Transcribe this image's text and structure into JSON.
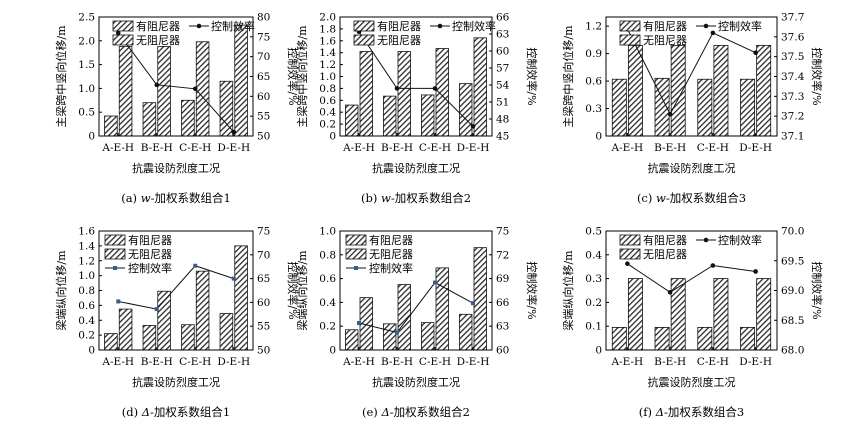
{
  "charts": [
    {
      "id": "a",
      "type": "bar+line",
      "categories": [
        "A-E-H",
        "B-E-H",
        "C-E-H",
        "D-E-H"
      ],
      "series": [
        {
          "name": "有阻尼器",
          "axis": "left",
          "values": [
            0.42,
            0.7,
            0.75,
            1.15
          ]
        },
        {
          "name": "无阻尼器",
          "axis": "left",
          "values": [
            1.88,
            1.88,
            1.98,
            2.33
          ]
        },
        {
          "name": "控制效率",
          "axis": "right",
          "values": [
            76.0,
            62.9,
            61.9,
            51.0
          ]
        }
      ],
      "ylabel": "主梁跨中竖向位移/m",
      "y2label": "控制效率/%",
      "xlabel": "抗震设防烈度工况",
      "ylim": [
        0,
        2.5
      ],
      "yticks": [
        "0",
        "0.5",
        "1.0",
        "1.5",
        "2.0",
        "2.5"
      ],
      "y2lim": [
        50,
        80
      ],
      "y2ticks": [
        "50",
        "55",
        "60",
        "65",
        "70",
        "75",
        "80"
      ],
      "legend": "top",
      "caption": {
        "prefix": "(a) ",
        "italic": "w",
        "suffix": "-加权系数组合1"
      }
    },
    {
      "id": "b",
      "type": "bar+line",
      "categories": [
        "A-E-H",
        "B-E-H",
        "C-E-H",
        "D-E-H"
      ],
      "series": [
        {
          "name": "有阻尼器",
          "axis": "left",
          "values": [
            0.52,
            0.67,
            0.69,
            0.88
          ]
        },
        {
          "name": "无阻尼器",
          "axis": "left",
          "values": [
            1.42,
            1.42,
            1.47,
            1.65
          ]
        },
        {
          "name": "控制效率",
          "axis": "right",
          "values": [
            63.4,
            53.4,
            53.4,
            46.7
          ]
        }
      ],
      "ylabel": "主梁跨中竖向位移/m",
      "y2label": "控制效率/%",
      "xlabel": "抗震设防烈度工况",
      "ylim": [
        0,
        2.0
      ],
      "yticks": [
        "0",
        "0.2",
        "0.4",
        "0.6",
        "0.8",
        "1.0",
        "1.2",
        "1.4",
        "1.6",
        "1.8",
        "2.0"
      ],
      "y2lim": [
        45,
        66
      ],
      "y2ticks": [
        "45",
        "48",
        "51",
        "54",
        "57",
        "60",
        "63",
        "66"
      ],
      "legend": "top",
      "caption": {
        "prefix": "(b) ",
        "italic": "w",
        "suffix": "-加权系数组合2"
      }
    },
    {
      "id": "c",
      "type": "bar+line",
      "categories": [
        "A-E-H",
        "B-E-H",
        "C-E-H",
        "D-E-H"
      ],
      "series": [
        {
          "name": "有阻尼器",
          "axis": "left",
          "values": [
            0.62,
            0.63,
            0.62,
            0.62
          ]
        },
        {
          "name": "无阻尼器",
          "axis": "left",
          "values": [
            0.99,
            0.99,
            0.99,
            0.99
          ]
        },
        {
          "name": "控制效率",
          "axis": "right",
          "values": [
            37.64,
            37.21,
            37.62,
            37.52
          ]
        }
      ],
      "ylabel": "主梁跨中竖向位移/m",
      "y2label": "控制效率/%",
      "xlabel": "抗震设防烈度工况",
      "ylim": [
        0,
        1.3
      ],
      "yticks": [
        "0",
        "0.3",
        "0.6",
        "0.9",
        "1.2"
      ],
      "y2lim": [
        37.1,
        37.7
      ],
      "y2ticks": [
        "37.1",
        "37.2",
        "37.3",
        "37.4",
        "37.5",
        "37.6",
        "37.7"
      ],
      "legend": "top",
      "caption": {
        "prefix": "(c) ",
        "italic": "w",
        "suffix": "-加权系数组合3"
      }
    },
    {
      "id": "d",
      "type": "bar+line",
      "categories": [
        "A-E-H",
        "B-E-H",
        "C-E-H",
        "D-E-H"
      ],
      "series": [
        {
          "name": "有阻尼器",
          "axis": "left",
          "values": [
            0.22,
            0.33,
            0.34,
            0.49
          ]
        },
        {
          "name": "无阻尼器",
          "axis": "left",
          "values": [
            0.55,
            0.79,
            1.06,
            1.4
          ]
        },
        {
          "name": "控制效率",
          "axis": "right",
          "values": [
            60.2,
            58.6,
            67.7,
            65.0
          ]
        }
      ],
      "ylabel": "梁端纵向位移/m",
      "y2label": "控制效率/%",
      "xlabel": "抗震设防烈度工况",
      "ylim": [
        0,
        1.6
      ],
      "yticks": [
        "0",
        "0.2",
        "0.4",
        "0.6",
        "0.8",
        "1.0",
        "1.2",
        "1.4",
        "1.6"
      ],
      "y2lim": [
        50,
        75
      ],
      "y2ticks": [
        "50",
        "55",
        "60",
        "65",
        "70",
        "75"
      ],
      "legend": "top-left",
      "caption": {
        "prefix": "(d) ",
        "italic": "Δ",
        "suffix": "-加权系数组合1"
      }
    },
    {
      "id": "e",
      "type": "bar+line",
      "categories": [
        "A-E-H",
        "B-E-H",
        "C-E-H",
        "D-E-H"
      ],
      "series": [
        {
          "name": "有阻尼器",
          "axis": "left",
          "values": [
            0.17,
            0.22,
            0.23,
            0.3
          ]
        },
        {
          "name": "无阻尼器",
          "axis": "left",
          "values": [
            0.44,
            0.55,
            0.69,
            0.86
          ]
        },
        {
          "name": "控制效率",
          "axis": "right",
          "values": [
            63.4,
            62.2,
            68.5,
            65.9
          ]
        }
      ],
      "ylabel": "梁端纵向位移/m",
      "y2label": "控制效率/%",
      "xlabel": "抗震设防烈度工况",
      "ylim": [
        0,
        1.0
      ],
      "yticks": [
        "0",
        "0.2",
        "0.4",
        "0.6",
        "0.8",
        "1.0"
      ],
      "y2lim": [
        60,
        75
      ],
      "y2ticks": [
        "60",
        "63",
        "66",
        "69",
        "72",
        "75"
      ],
      "legend": "top-left",
      "caption": {
        "prefix": "(e) ",
        "italic": "Δ",
        "suffix": "-加权系数组合2"
      }
    },
    {
      "id": "f",
      "type": "bar+line",
      "categories": [
        "A-E-H",
        "B-E-H",
        "C-E-H",
        "D-E-H"
      ],
      "series": [
        {
          "name": "有阻尼器",
          "axis": "left",
          "values": [
            0.095,
            0.095,
            0.095,
            0.095
          ]
        },
        {
          "name": "无阻尼器",
          "axis": "left",
          "values": [
            0.3,
            0.3,
            0.3,
            0.3
          ]
        },
        {
          "name": "控制效率",
          "axis": "right",
          "values": [
            69.45,
            68.97,
            69.42,
            69.32
          ]
        }
      ],
      "ylabel": "梁端纵向位移/m",
      "y2label": "控制效率/%",
      "xlabel": "抗震设防烈度工况",
      "ylim": [
        0,
        0.5
      ],
      "yticks": [
        "0",
        "0.1",
        "0.2",
        "0.3",
        "0.4",
        "0.5"
      ],
      "y2lim": [
        68.0,
        70.0
      ],
      "y2ticks": [
        "68.0",
        "68.5",
        "69.0",
        "69.5",
        "70.0"
      ],
      "legend": "top",
      "caption": {
        "prefix": "(f) ",
        "italic": "Δ",
        "suffix": "-加权系数组合3"
      }
    }
  ]
}
